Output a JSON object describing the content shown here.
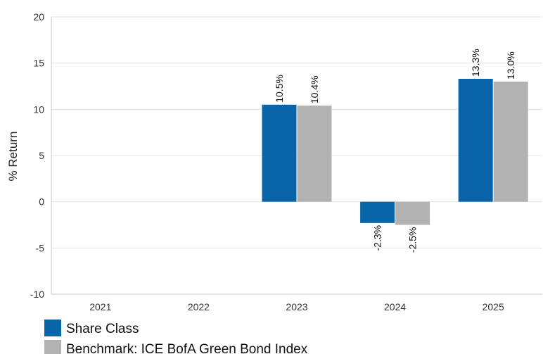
{
  "chart_data": {
    "type": "bar",
    "title": "",
    "xlabel": "",
    "ylabel": "% Return",
    "ylim": [
      -10,
      20
    ],
    "yticks": [
      -10,
      -5,
      0,
      5,
      10,
      15,
      20
    ],
    "grid": true,
    "legend_position": "bottom-left",
    "categories": [
      "2021",
      "2022",
      "2023",
      "2024",
      "2025"
    ],
    "series": [
      {
        "name": "Share Class",
        "color": "#0a64a8",
        "values": [
          null,
          null,
          10.5,
          -2.3,
          13.3
        ],
        "labels": [
          "",
          "",
          "10.5%",
          "-2.3%",
          "13.3%"
        ]
      },
      {
        "name": "Benchmark: ICE BofA Green Bond Index",
        "color": "#b2b2b2",
        "values": [
          null,
          null,
          10.4,
          -2.5,
          13.0
        ],
        "labels": [
          "",
          "",
          "10.4%",
          "-2.5%",
          "13.0%"
        ]
      }
    ]
  }
}
